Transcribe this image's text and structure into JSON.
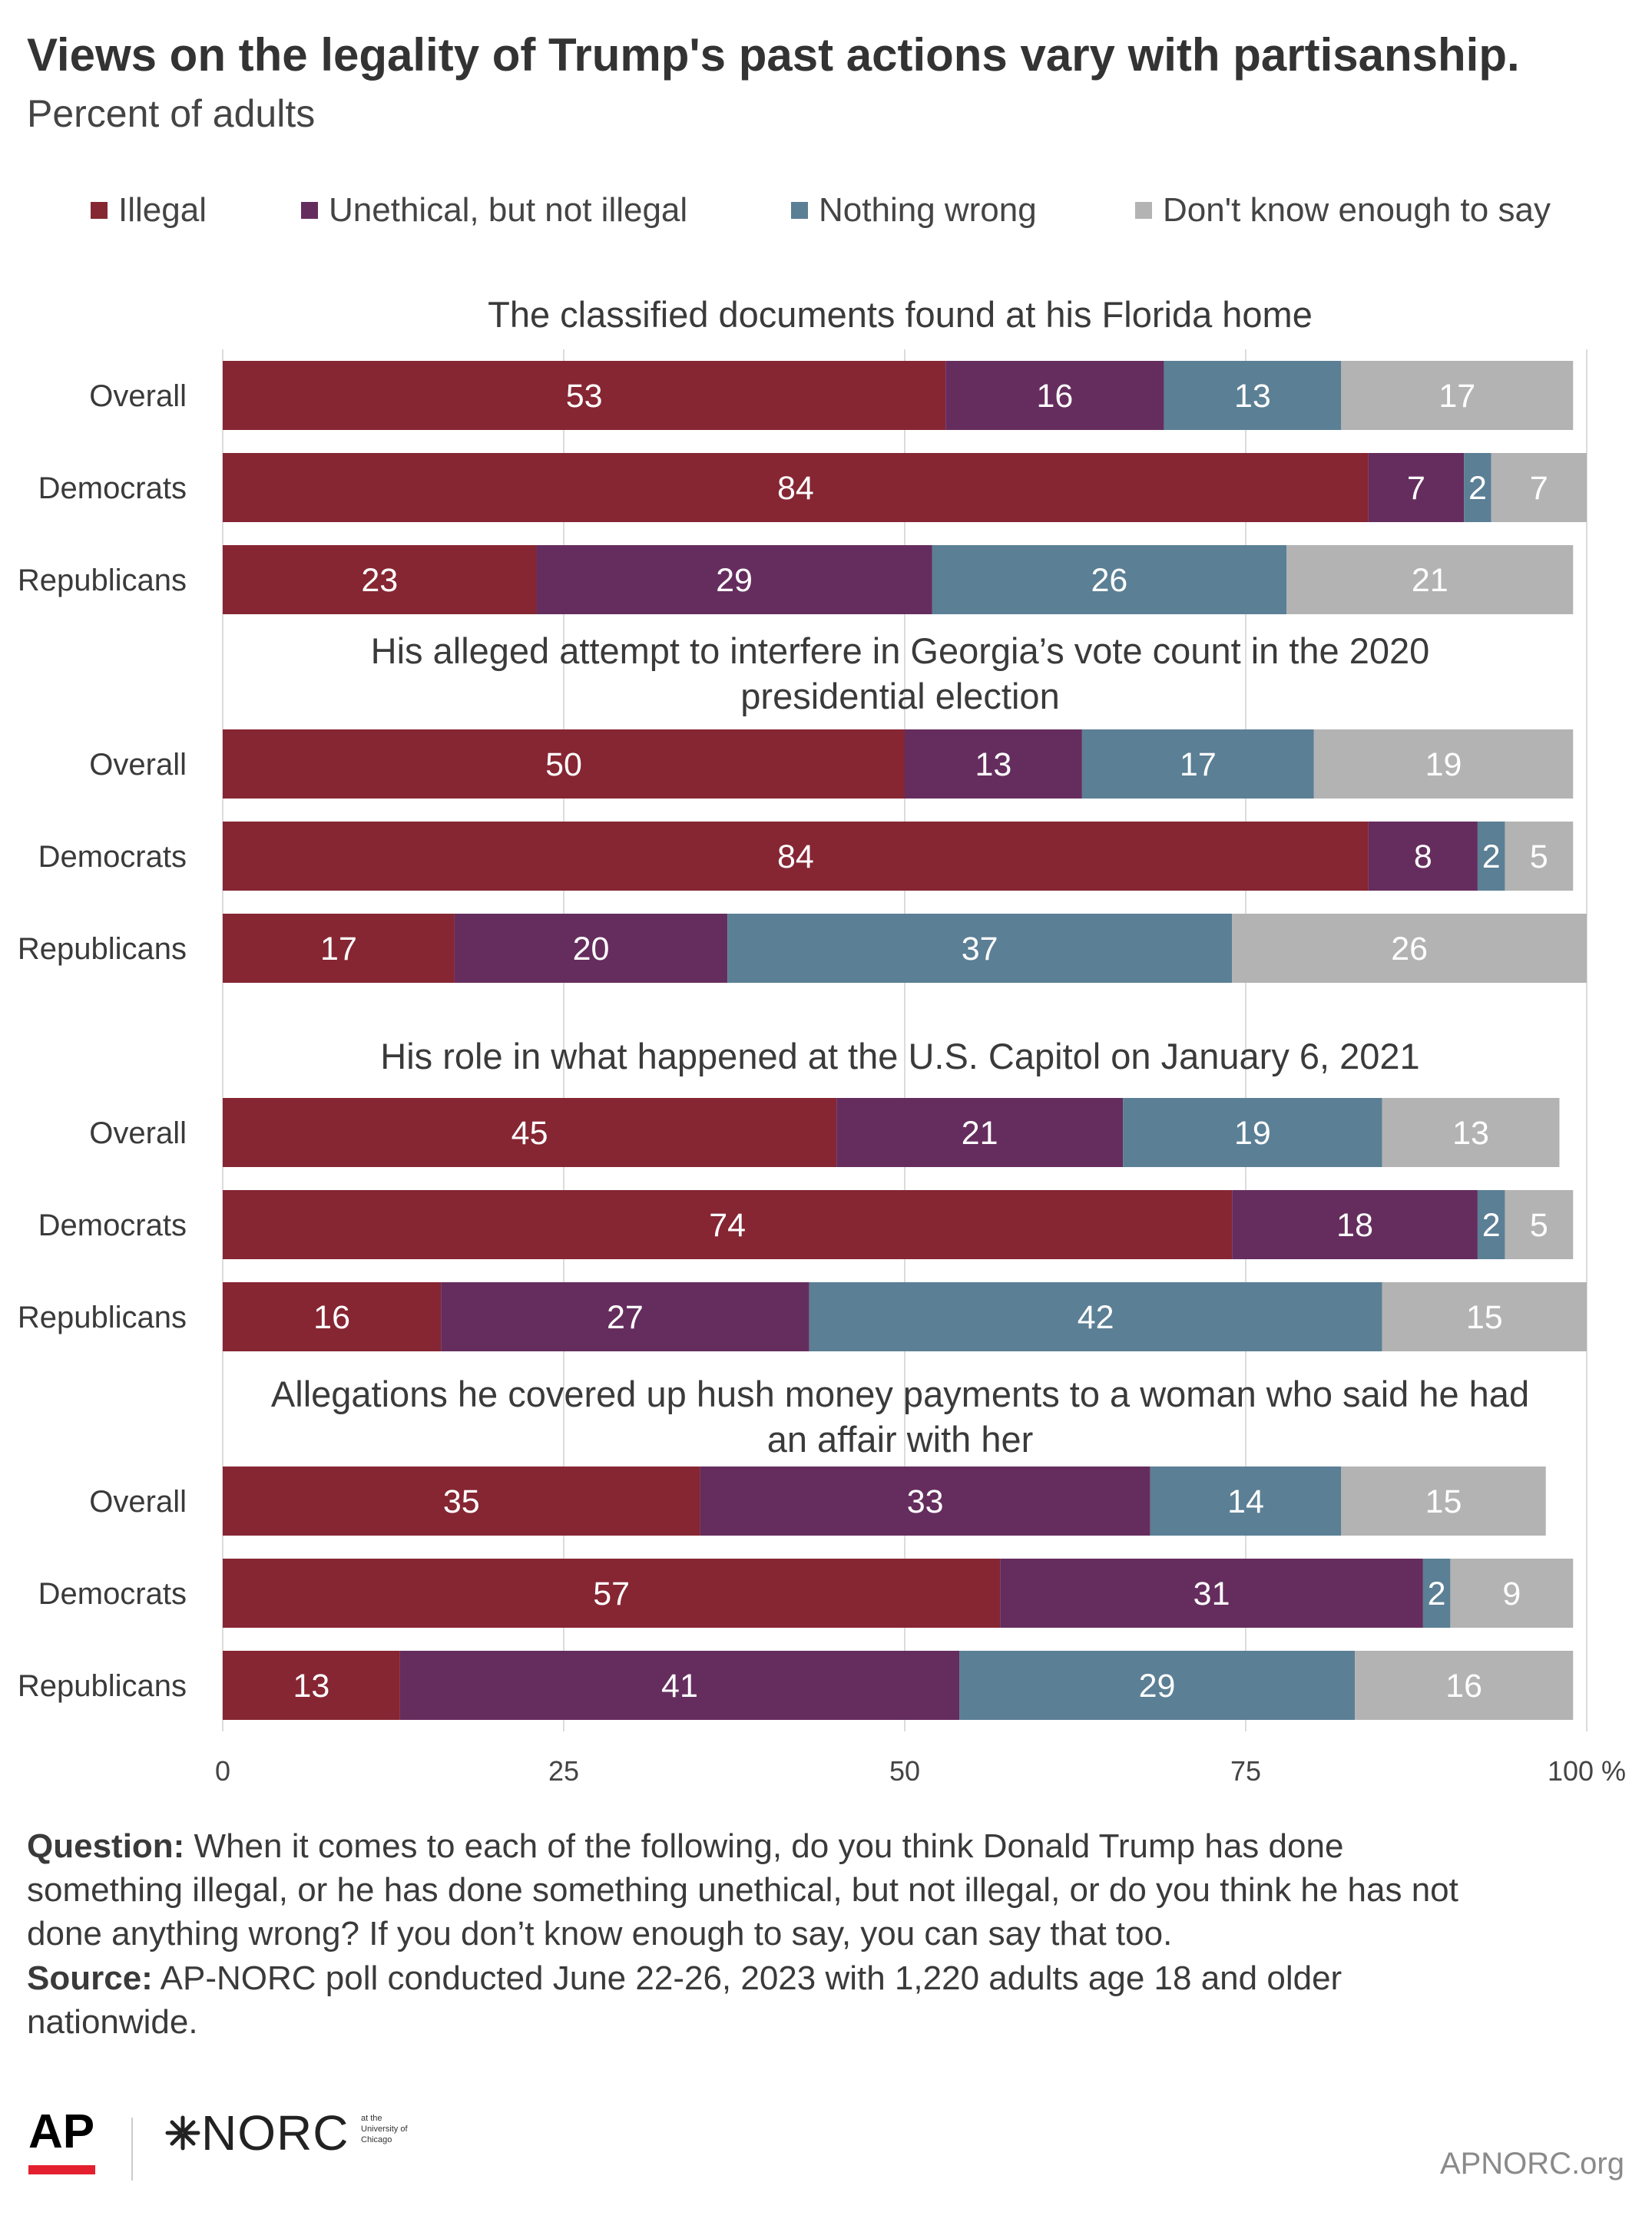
{
  "title": "Views on the legality of Trump's past actions vary with partisanship.",
  "subtitle": "Percent of adults",
  "legend": [
    {
      "label": "Illegal",
      "color": "#862633"
    },
    {
      "label": "Unethical, but not illegal",
      "color": "#652d5e"
    },
    {
      "label": "Nothing wrong",
      "color": "#5b7f95"
    },
    {
      "label": "Don't know enough to say",
      "color": "#b3b3b3"
    }
  ],
  "chart_data": {
    "type": "bar",
    "orientation": "horizontal",
    "stacked": true,
    "xlim": [
      0,
      100
    ],
    "x_ticks": [
      "0",
      "25",
      "50",
      "75",
      "100 %"
    ],
    "grid": true,
    "legend_position": "top",
    "series": [
      {
        "name": "Illegal",
        "color": "#862633"
      },
      {
        "name": "Unethical, but not illegal",
        "color": "#652d5e"
      },
      {
        "name": "Nothing wrong",
        "color": "#5b7f95"
      },
      {
        "name": "Don't know enough to say",
        "color": "#b3b3b3"
      }
    ],
    "groups": [
      {
        "title_lines": [
          "The classified documents found at his Florida home"
        ],
        "rows": [
          {
            "label": "Overall",
            "values": [
              53,
              16,
              13,
              17
            ]
          },
          {
            "label": "Democrats",
            "values": [
              84,
              7,
              2,
              7
            ]
          },
          {
            "label": "Republicans",
            "values": [
              23,
              29,
              26,
              21
            ]
          }
        ]
      },
      {
        "title_lines": [
          "His alleged attempt to interfere in Georgia’s vote count in the 2020",
          "presidential election"
        ],
        "rows": [
          {
            "label": "Overall",
            "values": [
              50,
              13,
              17,
              19
            ]
          },
          {
            "label": "Democrats",
            "values": [
              84,
              8,
              2,
              5
            ]
          },
          {
            "label": "Republicans",
            "values": [
              17,
              20,
              37,
              26
            ]
          }
        ]
      },
      {
        "title_lines": [
          "His role in what happened at the U.S. Capitol on January 6, 2021"
        ],
        "rows": [
          {
            "label": "Overall",
            "values": [
              45,
              21,
              19,
              13
            ]
          },
          {
            "label": "Democrats",
            "values": [
              74,
              18,
              2,
              5
            ]
          },
          {
            "label": "Republicans",
            "values": [
              16,
              27,
              42,
              15
            ]
          }
        ]
      },
      {
        "title_lines": [
          "Allegations he covered up hush money payments to a woman who said he had",
          "an affair with her"
        ],
        "rows": [
          {
            "label": "Overall",
            "values": [
              35,
              33,
              14,
              15
            ]
          },
          {
            "label": "Democrats",
            "values": [
              57,
              31,
              2,
              9
            ]
          },
          {
            "label": "Republicans",
            "values": [
              13,
              41,
              29,
              16
            ]
          }
        ]
      }
    ]
  },
  "notes": {
    "question_label": "Question:",
    "question_lines": [
      " When it comes to each of the following, do you think Donald Trump has done",
      "something illegal, or he has done something unethical, but not illegal, or do you think he has not",
      "done anything wrong? If you don’t know enough to say, you can say that too."
    ],
    "source_label": "Source:",
    "source_lines": [
      " AP-NORC poll conducted June 22-26, 2023 with 1,220 adults age 18 and older",
      "nationwide."
    ]
  },
  "footer": {
    "ap_logo": "AP",
    "norc_logo": "NORC",
    "norc_small_lines": [
      "at the",
      "University of",
      "Chicago"
    ],
    "url": "APNORC.org",
    "accent_color": "#e4202e"
  }
}
